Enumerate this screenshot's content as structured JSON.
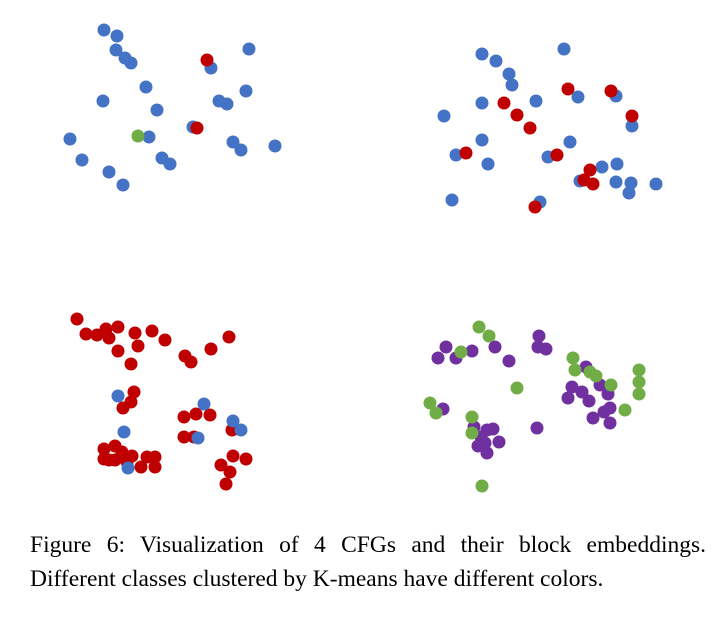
{
  "caption": "Figure 6: Visualization of 4 CFGs and their block embeddings. Different classes clustered by K-means have different colors.",
  "colors": {
    "blue": "#4472c4",
    "red": "#c00000",
    "green": "#70ad47",
    "purple": "#7030a0"
  },
  "chart_data": [
    {
      "type": "scatter",
      "position": "top-left",
      "axes_visible": false,
      "series": [
        {
          "color": "blue",
          "points": [
            [
              104,
              30
            ],
            [
              117,
              36
            ],
            [
              116,
              50
            ],
            [
              125,
              58
            ],
            [
              131,
              63
            ],
            [
              249,
              49
            ],
            [
              211,
              68
            ],
            [
              146,
              87
            ],
            [
              103,
              101
            ],
            [
              219,
              101
            ],
            [
              227,
              104
            ],
            [
              246,
              91
            ],
            [
              157,
              110
            ],
            [
              70,
              139
            ],
            [
              149,
              137
            ],
            [
              193,
              127
            ],
            [
              162,
              158
            ],
            [
              170,
              164
            ],
            [
              82,
              160
            ],
            [
              109,
              172
            ],
            [
              123,
              185
            ],
            [
              233,
              142
            ],
            [
              241,
              150
            ],
            [
              275,
              146
            ]
          ]
        },
        {
          "color": "red",
          "points": [
            [
              207,
              60
            ],
            [
              197,
              128
            ]
          ]
        },
        {
          "color": "green",
          "points": [
            [
              138,
              136
            ]
          ]
        }
      ]
    },
    {
      "type": "scatter",
      "position": "top-right",
      "axes_visible": false,
      "series": [
        {
          "color": "blue",
          "points": [
            [
              482,
              54
            ],
            [
              496,
              61
            ],
            [
              509,
              74
            ],
            [
              512,
              85
            ],
            [
              564,
              49
            ],
            [
              578,
              97
            ],
            [
              616,
              96
            ],
            [
              536,
              101
            ],
            [
              482,
              103
            ],
            [
              444,
              116
            ],
            [
              632,
              126
            ],
            [
              482,
              140
            ],
            [
              570,
              142
            ],
            [
              456,
              155
            ],
            [
              548,
              157
            ],
            [
              488,
              164
            ],
            [
              602,
              167
            ],
            [
              617,
              164
            ],
            [
              580,
              181
            ],
            [
              616,
              182
            ],
            [
              631,
              183
            ],
            [
              656,
              184
            ],
            [
              629,
              193
            ],
            [
              452,
              200
            ],
            [
              540,
              202
            ]
          ]
        },
        {
          "color": "red",
          "points": [
            [
              504,
              103
            ],
            [
              517,
              115
            ],
            [
              530,
              128
            ],
            [
              568,
              89
            ],
            [
              611,
              91
            ],
            [
              632,
              116
            ],
            [
              466,
              153
            ],
            [
              557,
              155
            ],
            [
              590,
              170
            ],
            [
              584,
              180
            ],
            [
              593,
              184
            ],
            [
              535,
              207
            ]
          ]
        }
      ]
    },
    {
      "type": "scatter",
      "position": "bottom-left",
      "axes_visible": false,
      "series": [
        {
          "color": "red",
          "points": [
            [
              77,
              319
            ],
            [
              86,
              334
            ],
            [
              97,
              335
            ],
            [
              106,
              329
            ],
            [
              118,
              327
            ],
            [
              109,
              338
            ],
            [
              135,
              333
            ],
            [
              152,
              331
            ],
            [
              165,
              340
            ],
            [
              138,
              346
            ],
            [
              229,
              337
            ],
            [
              211,
              349
            ],
            [
              185,
              356
            ],
            [
              191,
              362
            ],
            [
              118,
              351
            ],
            [
              131,
              364
            ],
            [
              134,
              392
            ],
            [
              131,
              402
            ],
            [
              123,
              408
            ],
            [
              184,
              417
            ],
            [
              196,
              414
            ],
            [
              210,
              415
            ],
            [
              184,
              437
            ],
            [
              194,
              437
            ],
            [
              232,
              430
            ],
            [
              104,
              449
            ],
            [
              115,
              446
            ],
            [
              122,
              452
            ],
            [
              109,
              460
            ],
            [
              132,
              456
            ],
            [
              147,
              457
            ],
            [
              155,
              457
            ],
            [
              141,
              467
            ],
            [
              155,
              467
            ],
            [
              104,
              459
            ],
            [
              233,
              456
            ],
            [
              246,
              459
            ],
            [
              221,
              465
            ],
            [
              230,
              472
            ],
            [
              226,
              484
            ],
            [
              115,
              460
            ],
            [
              127,
              462
            ]
          ]
        },
        {
          "color": "blue",
          "points": [
            [
              118,
              396
            ],
            [
              204,
              404
            ],
            [
              233,
              421
            ],
            [
              241,
              430
            ],
            [
              124,
              432
            ],
            [
              198,
              438
            ],
            [
              128,
              468
            ]
          ]
        }
      ]
    },
    {
      "type": "scatter",
      "position": "bottom-right",
      "axes_visible": false,
      "series": [
        {
          "color": "purple",
          "points": [
            [
              446,
              347
            ],
            [
              438,
              358
            ],
            [
              456,
              358
            ],
            [
              472,
              351
            ],
            [
              495,
              347
            ],
            [
              509,
              361
            ],
            [
              539,
              336
            ],
            [
              538,
              347
            ],
            [
              546,
              349
            ],
            [
              586,
              367
            ],
            [
              572,
              387
            ],
            [
              582,
              392
            ],
            [
              600,
              385
            ],
            [
              608,
              394
            ],
            [
              568,
              398
            ],
            [
              589,
              401
            ],
            [
              610,
              408
            ],
            [
              604,
              412
            ],
            [
              593,
              418
            ],
            [
              610,
              423
            ],
            [
              443,
              409
            ],
            [
              474,
              427
            ],
            [
              487,
              430
            ],
            [
              481,
              437
            ],
            [
              493,
              429
            ],
            [
              499,
              442
            ],
            [
              485,
              443
            ],
            [
              478,
              446
            ],
            [
              487,
              453
            ],
            [
              537,
              428
            ]
          ]
        },
        {
          "color": "green",
          "points": [
            [
              479,
              327
            ],
            [
              489,
              336
            ],
            [
              461,
              352
            ],
            [
              573,
              358
            ],
            [
              575,
              370
            ],
            [
              590,
              372
            ],
            [
              596,
              376
            ],
            [
              639,
              370
            ],
            [
              639,
              382
            ],
            [
              639,
              394
            ],
            [
              611,
              385
            ],
            [
              517,
              388
            ],
            [
              430,
              403
            ],
            [
              436,
              413
            ],
            [
              472,
              417
            ],
            [
              472,
              433
            ],
            [
              625,
              410
            ],
            [
              482,
              486
            ]
          ]
        }
      ]
    }
  ]
}
